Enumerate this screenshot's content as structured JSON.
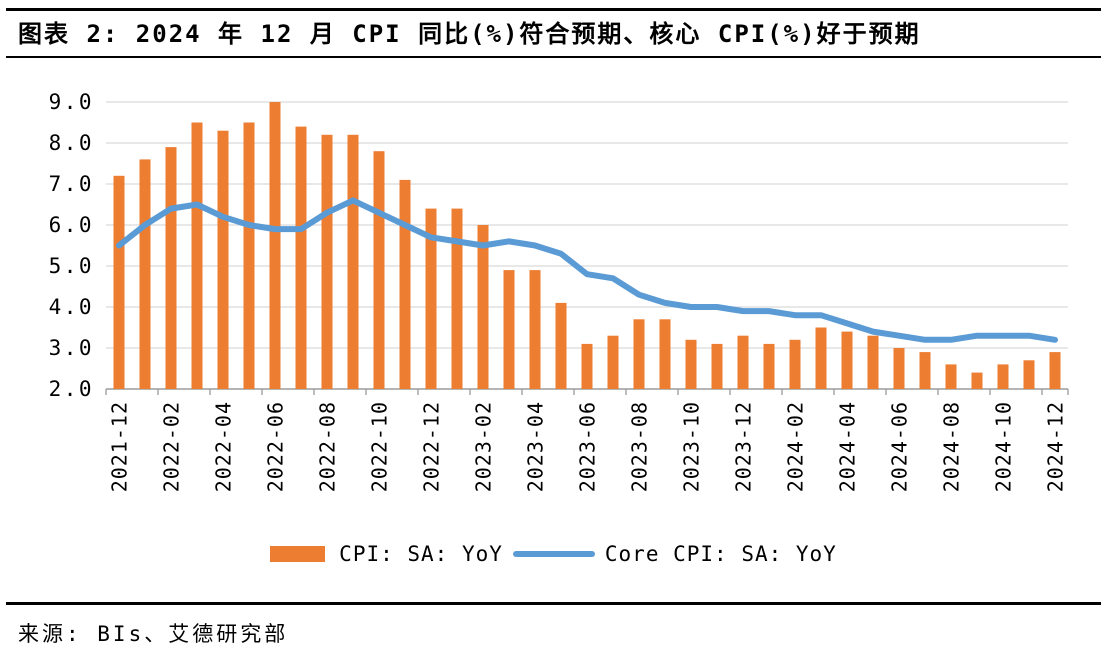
{
  "header": {
    "title": "图表 2: 2024 年 12 月 CPI 同比(%)符合预期、核心 CPI(%)好于预期"
  },
  "chart_data": {
    "type": "combo",
    "title": "",
    "xlabel": "",
    "ylabel": "",
    "ylim": [
      2.0,
      9.0
    ],
    "grid": "horizontal",
    "legend_position": "bottom-center",
    "gridline_color": "#D9D9D9",
    "axis_color": "#9C9C9C",
    "x_tick_every": 2,
    "y_tick_labels": [
      "2.0",
      "3.0",
      "4.0",
      "5.0",
      "6.0",
      "7.0",
      "8.0",
      "9.0"
    ],
    "categories": [
      "2021-12",
      "2022-01",
      "2022-02",
      "2022-03",
      "2022-04",
      "2022-05",
      "2022-06",
      "2022-07",
      "2022-08",
      "2022-09",
      "2022-10",
      "2022-11",
      "2022-12",
      "2023-01",
      "2023-02",
      "2023-03",
      "2023-04",
      "2023-05",
      "2023-06",
      "2023-07",
      "2023-08",
      "2023-09",
      "2023-10",
      "2023-11",
      "2023-12",
      "2024-01",
      "2024-02",
      "2024-03",
      "2024-04",
      "2024-05",
      "2024-06",
      "2024-07",
      "2024-08",
      "2024-09",
      "2024-10",
      "2024-11",
      "2024-12"
    ],
    "series": [
      {
        "name": "CPI: SA: YoY",
        "type": "bar",
        "color": "#ED7D31",
        "values": [
          7.2,
          7.6,
          7.9,
          8.5,
          8.3,
          8.5,
          9.0,
          8.4,
          8.2,
          8.2,
          7.8,
          7.1,
          6.4,
          6.4,
          6.0,
          4.9,
          4.9,
          4.1,
          3.1,
          3.3,
          3.7,
          3.7,
          3.2,
          3.1,
          3.3,
          3.1,
          3.2,
          3.5,
          3.4,
          3.3,
          3.0,
          2.9,
          2.6,
          2.4,
          2.6,
          2.7,
          2.9
        ]
      },
      {
        "name": "Core CPI: SA: YoY",
        "type": "line",
        "color": "#5B9BD5",
        "values": [
          5.5,
          6.0,
          6.4,
          6.5,
          6.2,
          6.0,
          5.9,
          5.9,
          6.3,
          6.6,
          6.3,
          6.0,
          5.7,
          5.6,
          5.5,
          5.6,
          5.5,
          5.3,
          4.8,
          4.7,
          4.3,
          4.1,
          4.0,
          4.0,
          3.9,
          3.9,
          3.8,
          3.8,
          3.6,
          3.4,
          3.3,
          3.2,
          3.2,
          3.3,
          3.3,
          3.3,
          3.2
        ]
      }
    ]
  },
  "footer": {
    "source": "来源: BIs、艾德研究部"
  }
}
